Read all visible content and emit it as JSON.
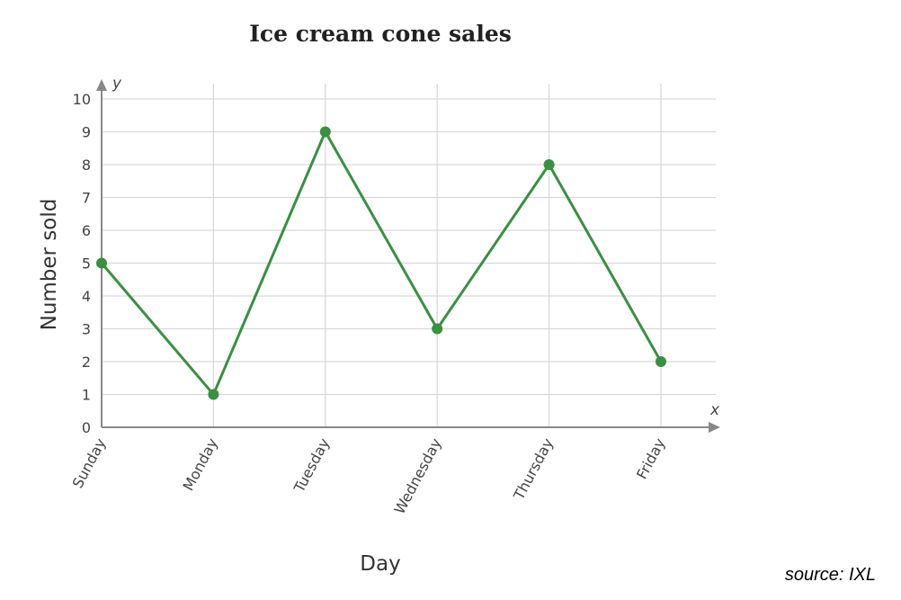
{
  "colors": {
    "line": "#3a8f43",
    "grid": "#d9d9d9",
    "axis": "#888888"
  },
  "source_text": "source: IXL",
  "chart_data": {
    "type": "line",
    "title": "Ice cream cone sales",
    "xlabel": "Day",
    "ylabel": "Number sold",
    "x_axis_letter": "x",
    "y_axis_letter": "y",
    "categories": [
      "Sunday",
      "Monday",
      "Tuesday",
      "Wednesday",
      "Thursday",
      "Friday"
    ],
    "series": [
      {
        "values": [
          5,
          1,
          9,
          3,
          8,
          2
        ]
      }
    ],
    "ylim": [
      0,
      10
    ],
    "yticks": [
      0,
      1,
      2,
      3,
      4,
      5,
      6,
      7,
      8,
      9,
      10
    ],
    "grid": true,
    "legend": "none"
  }
}
